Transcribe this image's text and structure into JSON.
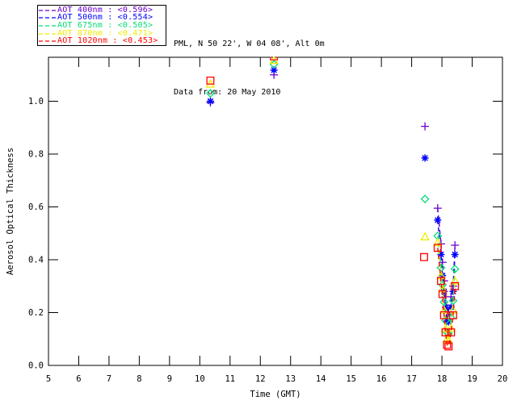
{
  "header": {
    "line1": "PML, N 50 22', W 04 08', Alt 0m",
    "line2": "Data from: 20 May 2010"
  },
  "legend": {
    "position": "top-left",
    "dash_icon": "dashed-line-sample"
  },
  "chart_data": {
    "type": "scatter",
    "title": "",
    "xlabel": "Time (GMT)",
    "ylabel": "Aerosol Optical Thickness",
    "xlim": [
      5,
      20
    ],
    "ylim": [
      0,
      1.167
    ],
    "grid": false,
    "legend_position": "top-left",
    "xticks": [
      5,
      6,
      7,
      8,
      9,
      10,
      11,
      12,
      13,
      14,
      15,
      16,
      17,
      18,
      19,
      20
    ],
    "yticks": [
      0.0,
      0.2,
      0.4,
      0.6,
      0.8,
      1.0
    ],
    "ytick_labels": [
      "0.0",
      "0.2",
      "0.4",
      "0.6",
      "0.8",
      "1.0"
    ],
    "line_style": "dashed",
    "series": [
      {
        "name": "AOT 400nm",
        "mean": "<0.596>",
        "legend_label": "AOT  400nm : <0.596>",
        "color": "#6A00CD",
        "marker": "plus",
        "scatter": [
          [
            10.35,
            0.995
          ],
          [
            12.45,
            1.1
          ],
          [
            17.44,
            0.905
          ]
        ],
        "line": [
          [
            17.86,
            0.595
          ],
          [
            17.97,
            0.46
          ],
          [
            18.02,
            0.39
          ],
          [
            18.07,
            0.32
          ],
          [
            18.12,
            0.26
          ],
          [
            18.17,
            0.215
          ],
          [
            18.22,
            0.2
          ],
          [
            18.3,
            0.26
          ],
          [
            18.37,
            0.3
          ],
          [
            18.43,
            0.455
          ]
        ]
      },
      {
        "name": "AOT 500nm",
        "mean": "<0.554>",
        "legend_label": "AOT  500nm : <0.554>",
        "color": "#0000FF",
        "marker": "asterisk",
        "scatter": [
          [
            10.35,
            1.0
          ],
          [
            12.45,
            1.118
          ],
          [
            17.44,
            0.785
          ]
        ],
        "line": [
          [
            17.86,
            0.55
          ],
          [
            17.97,
            0.42
          ],
          [
            18.02,
            0.34
          ],
          [
            18.07,
            0.28
          ],
          [
            18.12,
            0.22
          ],
          [
            18.17,
            0.168
          ],
          [
            18.22,
            0.165
          ],
          [
            18.3,
            0.22
          ],
          [
            18.37,
            0.28
          ],
          [
            18.43,
            0.42
          ]
        ]
      },
      {
        "name": "AOT 675nm",
        "mean": "<0.505>",
        "legend_label": "AOT  675nm : <0.505>",
        "color": "#00DC78",
        "marker": "diamond",
        "scatter": [
          [
            10.35,
            1.03
          ],
          [
            12.45,
            1.14
          ],
          [
            17.44,
            0.63
          ]
        ],
        "line": [
          [
            17.86,
            0.49
          ],
          [
            17.97,
            0.37
          ],
          [
            18.02,
            0.305
          ],
          [
            18.07,
            0.24
          ],
          [
            18.12,
            0.17
          ],
          [
            18.17,
            0.125
          ],
          [
            18.22,
            0.12
          ],
          [
            18.3,
            0.18
          ],
          [
            18.37,
            0.245
          ],
          [
            18.43,
            0.365
          ]
        ]
      },
      {
        "name": "AOT 870nm",
        "mean": "<0.471>",
        "legend_label": "AOT  870nm : <0.471>",
        "color": "#EDED00",
        "marker": "triangle",
        "scatter": [
          [
            10.35,
            1.065
          ],
          [
            12.45,
            1.155
          ],
          [
            17.44,
            0.487
          ]
        ],
        "line": [
          [
            17.86,
            0.465
          ],
          [
            17.97,
            0.34
          ],
          [
            18.02,
            0.29
          ],
          [
            18.07,
            0.21
          ],
          [
            18.12,
            0.14
          ],
          [
            18.17,
            0.1
          ],
          [
            18.22,
            0.095
          ],
          [
            18.3,
            0.14
          ],
          [
            18.37,
            0.21
          ],
          [
            18.43,
            0.32
          ]
        ]
      },
      {
        "name": "AOT 1020nm",
        "mean": "<0.453>",
        "legend_label": "AOT 1020nm : <0.453>",
        "color": "#FF0000",
        "marker": "square",
        "scatter": [
          [
            10.35,
            1.078
          ],
          [
            12.45,
            1.17
          ],
          [
            17.41,
            0.41
          ]
        ],
        "line": [
          [
            17.86,
            0.445
          ],
          [
            17.97,
            0.32
          ],
          [
            18.02,
            0.27
          ],
          [
            18.07,
            0.19
          ],
          [
            18.12,
            0.125
          ],
          [
            18.17,
            0.078
          ],
          [
            18.22,
            0.072
          ],
          [
            18.3,
            0.125
          ],
          [
            18.37,
            0.19
          ],
          [
            18.43,
            0.3
          ]
        ]
      }
    ]
  }
}
